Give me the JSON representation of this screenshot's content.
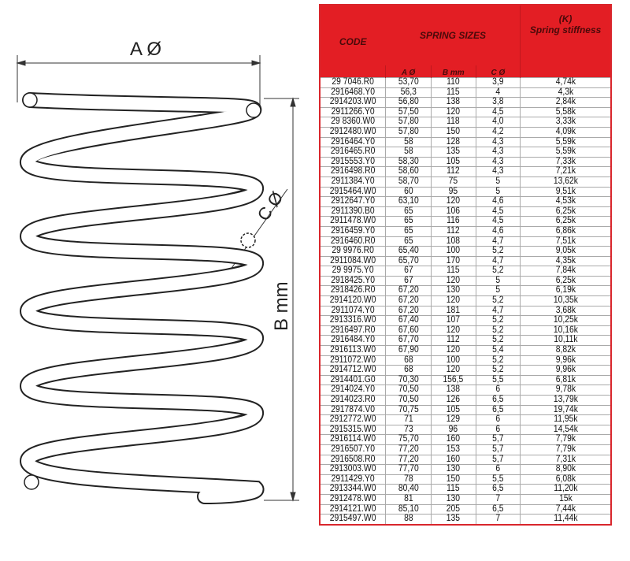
{
  "diagram": {
    "label_a": "A Ø",
    "label_b": "B mm",
    "label_c": "C Ø"
  },
  "table": {
    "header": {
      "code": "CODE",
      "sizes": "SPRING SIZES",
      "k_line1": "(K)",
      "k_line2": "Spring stiffness",
      "a": "A Ø",
      "b": "B mm",
      "c": "C Ø"
    },
    "rows": [
      [
        "29 7046.R0",
        "53,70",
        "110",
        "3,9",
        "4,74k"
      ],
      [
        "2916468.Y0",
        "56,3",
        "115",
        "4",
        "4,3k"
      ],
      [
        "2914203.W0",
        "56,80",
        "138",
        "3,8",
        "2,84k"
      ],
      [
        "2911266.Y0",
        "57,50",
        "120",
        "4,5",
        "5,58k"
      ],
      [
        "29 8360.W0",
        "57,80",
        "118",
        "4,0",
        "3,33k"
      ],
      [
        "2912480.W0",
        "57,80",
        "150",
        "4,2",
        "4,09k"
      ],
      [
        "2916464.Y0",
        "58",
        "128",
        "4,3",
        "5,59k"
      ],
      [
        "2916465.R0",
        "58",
        "135",
        "4,3",
        "5,59k"
      ],
      [
        "2915553.Y0",
        "58,30",
        "105",
        "4,3",
        "7,33k"
      ],
      [
        "2916498.R0",
        "58,60",
        "112",
        "4,3",
        "7,21k"
      ],
      [
        "2911384.Y0",
        "58,70",
        "75",
        "5",
        "13,62k"
      ],
      [
        "2915464.W0",
        "60",
        "95",
        "5",
        "9,51k"
      ],
      [
        "2912647.Y0",
        "63,10",
        "120",
        "4,6",
        "4,53k"
      ],
      [
        "2911390.B0",
        "65",
        "106",
        "4,5",
        "6,25k"
      ],
      [
        "2911478.W0",
        "65",
        "116",
        "4,5",
        "6,25k"
      ],
      [
        "2916459.Y0",
        "65",
        "112",
        "4,6",
        "6,86k"
      ],
      [
        "2916460.R0",
        "65",
        "108",
        "4,7",
        "7,51k"
      ],
      [
        "29 9976.R0",
        "65,40",
        "100",
        "5,2",
        "9,05k"
      ],
      [
        "2911084.W0",
        "65,70",
        "170",
        "4,7",
        "4,35k"
      ],
      [
        "29 9975.Y0",
        "67",
        "115",
        "5,2",
        "7,84k"
      ],
      [
        "2918425.Y0",
        "67",
        "120",
        "5",
        "6,25k"
      ],
      [
        "2918426.R0",
        "67,20",
        "130",
        "5",
        "6,19k"
      ],
      [
        "2914120.W0",
        "67,20",
        "120",
        "5,2",
        "10,35k"
      ],
      [
        "2911074.Y0",
        "67,20",
        "181",
        "4,7",
        "3,68k"
      ],
      [
        "2913316.W0",
        "67,40",
        "107",
        "5,2",
        "10,25k"
      ],
      [
        "2916497.R0",
        "67,60",
        "120",
        "5,2",
        "10,16k"
      ],
      [
        "2916484.Y0",
        "67,70",
        "112",
        "5,2",
        "10,11k"
      ],
      [
        "2916113.W0",
        "67,90",
        "120",
        "5,4",
        "8,82k"
      ],
      [
        "2911072.W0",
        "68",
        "100",
        "5,2",
        "9,96k"
      ],
      [
        "2914712.W0",
        "68",
        "120",
        "5,2",
        "9,96k"
      ],
      [
        "2914401.G0",
        "70,30",
        "156,5",
        "5,5",
        "6,81k"
      ],
      [
        "2914024.Y0",
        "70,50",
        "138",
        "6",
        "9,78k"
      ],
      [
        "2914023.R0",
        "70,50",
        "126",
        "6,5",
        "13,79k"
      ],
      [
        "2917874.V0",
        "70,75",
        "105",
        "6,5",
        "19,74k"
      ],
      [
        "2912772.W0",
        "71",
        "129",
        "6",
        "11,95k"
      ],
      [
        "2915315.W0",
        "73",
        "96",
        "6",
        "14,54k"
      ],
      [
        "2916114.W0",
        "75,70",
        "160",
        "5,7",
        "7,79k"
      ],
      [
        "2916507.Y0",
        "77,20",
        "153",
        "5,7",
        "7,79k"
      ],
      [
        "2916508.R0",
        "77,20",
        "160",
        "5,7",
        "7,31k"
      ],
      [
        "2913003.W0",
        "77,70",
        "130",
        "6",
        "8,90k"
      ],
      [
        "2911429.Y0",
        "78",
        "150",
        "5,5",
        "6,08k"
      ],
      [
        "2913344.W0",
        "80,40",
        "115",
        "6,5",
        "11,20k"
      ],
      [
        "2912478.W0",
        "81",
        "130",
        "7",
        "15k"
      ],
      [
        "2914121.W0",
        "85,10",
        "205",
        "6,5",
        "7,44k"
      ],
      [
        "2915497.W0",
        "88",
        "135",
        "7",
        "11,44k"
      ]
    ]
  },
  "colors": {
    "header_red": "#e31e24",
    "header_text": "#4a0a0a"
  }
}
